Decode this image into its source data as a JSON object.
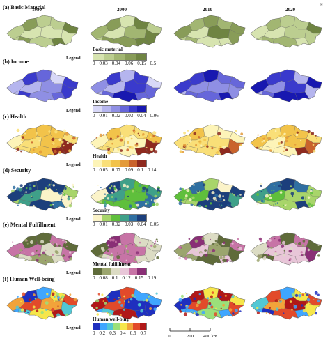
{
  "years": [
    "1990",
    "2000",
    "2010",
    "2020"
  ],
  "north_label": "N",
  "scale": {
    "labels": [
      "0",
      "200",
      "400 km"
    ]
  },
  "rows": [
    {
      "key": "basic",
      "title": "(a) Basic Material",
      "legend_word": "Legend",
      "legend_title": "Basic material",
      "ticks": [
        "0",
        "0.03",
        "0.04",
        "0.06",
        "0.15",
        "0.5"
      ],
      "colors": [
        "#d7e4b0",
        "#bcce90",
        "#a2b672",
        "#889c58",
        "#6f8442"
      ]
    },
    {
      "key": "income",
      "title": "(b) Income",
      "legend_word": "Legend",
      "legend_title": "Income",
      "ticks": [
        "0",
        "0.01",
        "0.02",
        "0.03",
        "0.04",
        "0.06"
      ],
      "colors": [
        "#d8d8f7",
        "#b5b5ee",
        "#8f8fe4",
        "#6666da",
        "#3a3acc",
        "#1818b0"
      ]
    },
    {
      "key": "health",
      "title": "(c) Health",
      "legend_word": "Legend",
      "legend_title": "Health",
      "ticks": [
        "0",
        "0.05",
        "0.07",
        "0.09",
        "0.1",
        "0.14"
      ],
      "colors": [
        "#fdf4b8",
        "#f9df78",
        "#f2c34a",
        "#e39a3a",
        "#c9632c",
        "#8e2a1f"
      ]
    },
    {
      "key": "security",
      "title": "(d) Security",
      "legend_word": "Legend",
      "legend_title": "Security",
      "ticks": [
        "0",
        "0.01",
        "0.02",
        "0.03",
        "0.04",
        "0.05"
      ],
      "colors": [
        "#fbf3c9",
        "#a8d56a",
        "#5fbf3c",
        "#3fa089",
        "#2f6fa1",
        "#1c3f7c"
      ]
    },
    {
      "key": "mental",
      "title": "(e) Mental Fulfillment",
      "legend_word": "Legend",
      "legend_title": "Mental fulfillment",
      "ticks": [
        "0",
        "0.08",
        "0.1",
        "0.12",
        "0.15",
        "0.19"
      ],
      "colors": [
        "#5f6b3a",
        "#9ba56e",
        "#dcdcc4",
        "#e8c6d8",
        "#c774a6",
        "#8a2f76"
      ]
    },
    {
      "key": "wellbeing",
      "title": "(f) Human Well-being",
      "legend_word": "Legend",
      "legend_title": "Human well-bing",
      "ticks": [
        "0",
        "0.2",
        "0.3",
        "0.4",
        "0.5",
        "0.7"
      ],
      "colors": [
        "#1f2fbf",
        "#3fa6ff",
        "#52c7d4",
        "#9be07a",
        "#f6e64a",
        "#f2a33a",
        "#e24a2a",
        "#b01818"
      ]
    }
  ]
}
